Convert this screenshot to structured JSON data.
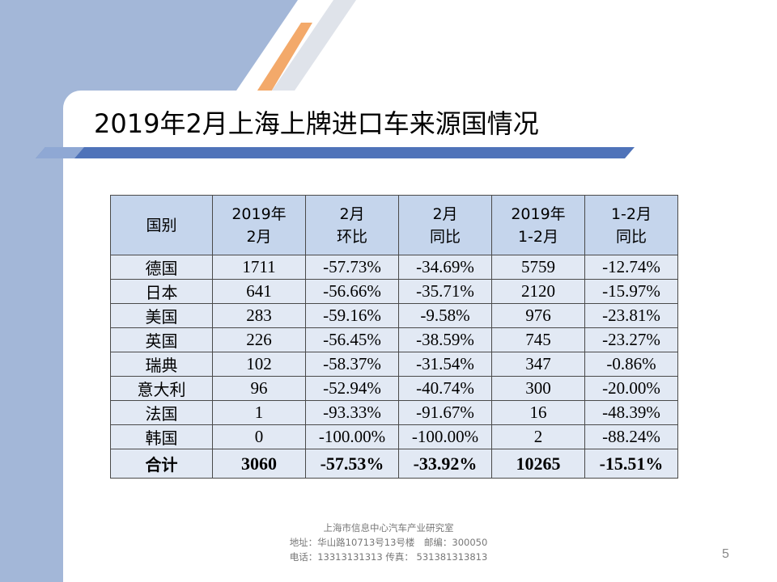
{
  "colors": {
    "side_band": "#a3b7d8",
    "accent_orange": "#f3a96a",
    "stripe_grey": "#dfe3ea",
    "title_bar": "#4f73b9",
    "header_fill": "#c5d5ec",
    "body_fill": "#e2e9f4"
  },
  "slide": {
    "title": "2019年2月上海上牌进口车来源国情况",
    "page_number": "5"
  },
  "table": {
    "headers": [
      {
        "line1": "国别",
        "line2": ""
      },
      {
        "line1": "2019年",
        "line2": "2月"
      },
      {
        "line1": "2月",
        "line2": "环比"
      },
      {
        "line1": "2月",
        "line2": "同比"
      },
      {
        "line1": "2019年",
        "line2": "1-2月"
      },
      {
        "line1": "1-2月",
        "line2": "同比"
      }
    ],
    "rows": [
      [
        "德国",
        "1711",
        "-57.73%",
        "-34.69%",
        "5759",
        "-12.74%"
      ],
      [
        "日本",
        "641",
        "-56.66%",
        "-35.71%",
        "2120",
        "-15.97%"
      ],
      [
        "美国",
        "283",
        "-59.16%",
        "-9.58%",
        "976",
        "-23.81%"
      ],
      [
        "英国",
        "226",
        "-56.45%",
        "-38.59%",
        "745",
        "-23.27%"
      ],
      [
        "瑞典",
        "102",
        "-58.37%",
        "-31.54%",
        "347",
        "-0.86%"
      ],
      [
        "意大利",
        "96",
        "-52.94%",
        "-40.74%",
        "300",
        "-20.00%"
      ],
      [
        "法国",
        "1",
        "-93.33%",
        "-91.67%",
        "16",
        "-48.39%"
      ],
      [
        "韩国",
        "0",
        "-100.00%",
        "-100.00%",
        "2",
        "-88.24%"
      ]
    ],
    "total": [
      "合计",
      "3060",
      "-57.53%",
      "-33.92%",
      "10265",
      "-15.51%"
    ]
  },
  "footer": {
    "line1": "上海市信息中心汽车产业研究室",
    "line2": "地址：华山路10713号13号楼　邮编：300050",
    "line3": "电话：13313131313  传真： 531381313813"
  }
}
